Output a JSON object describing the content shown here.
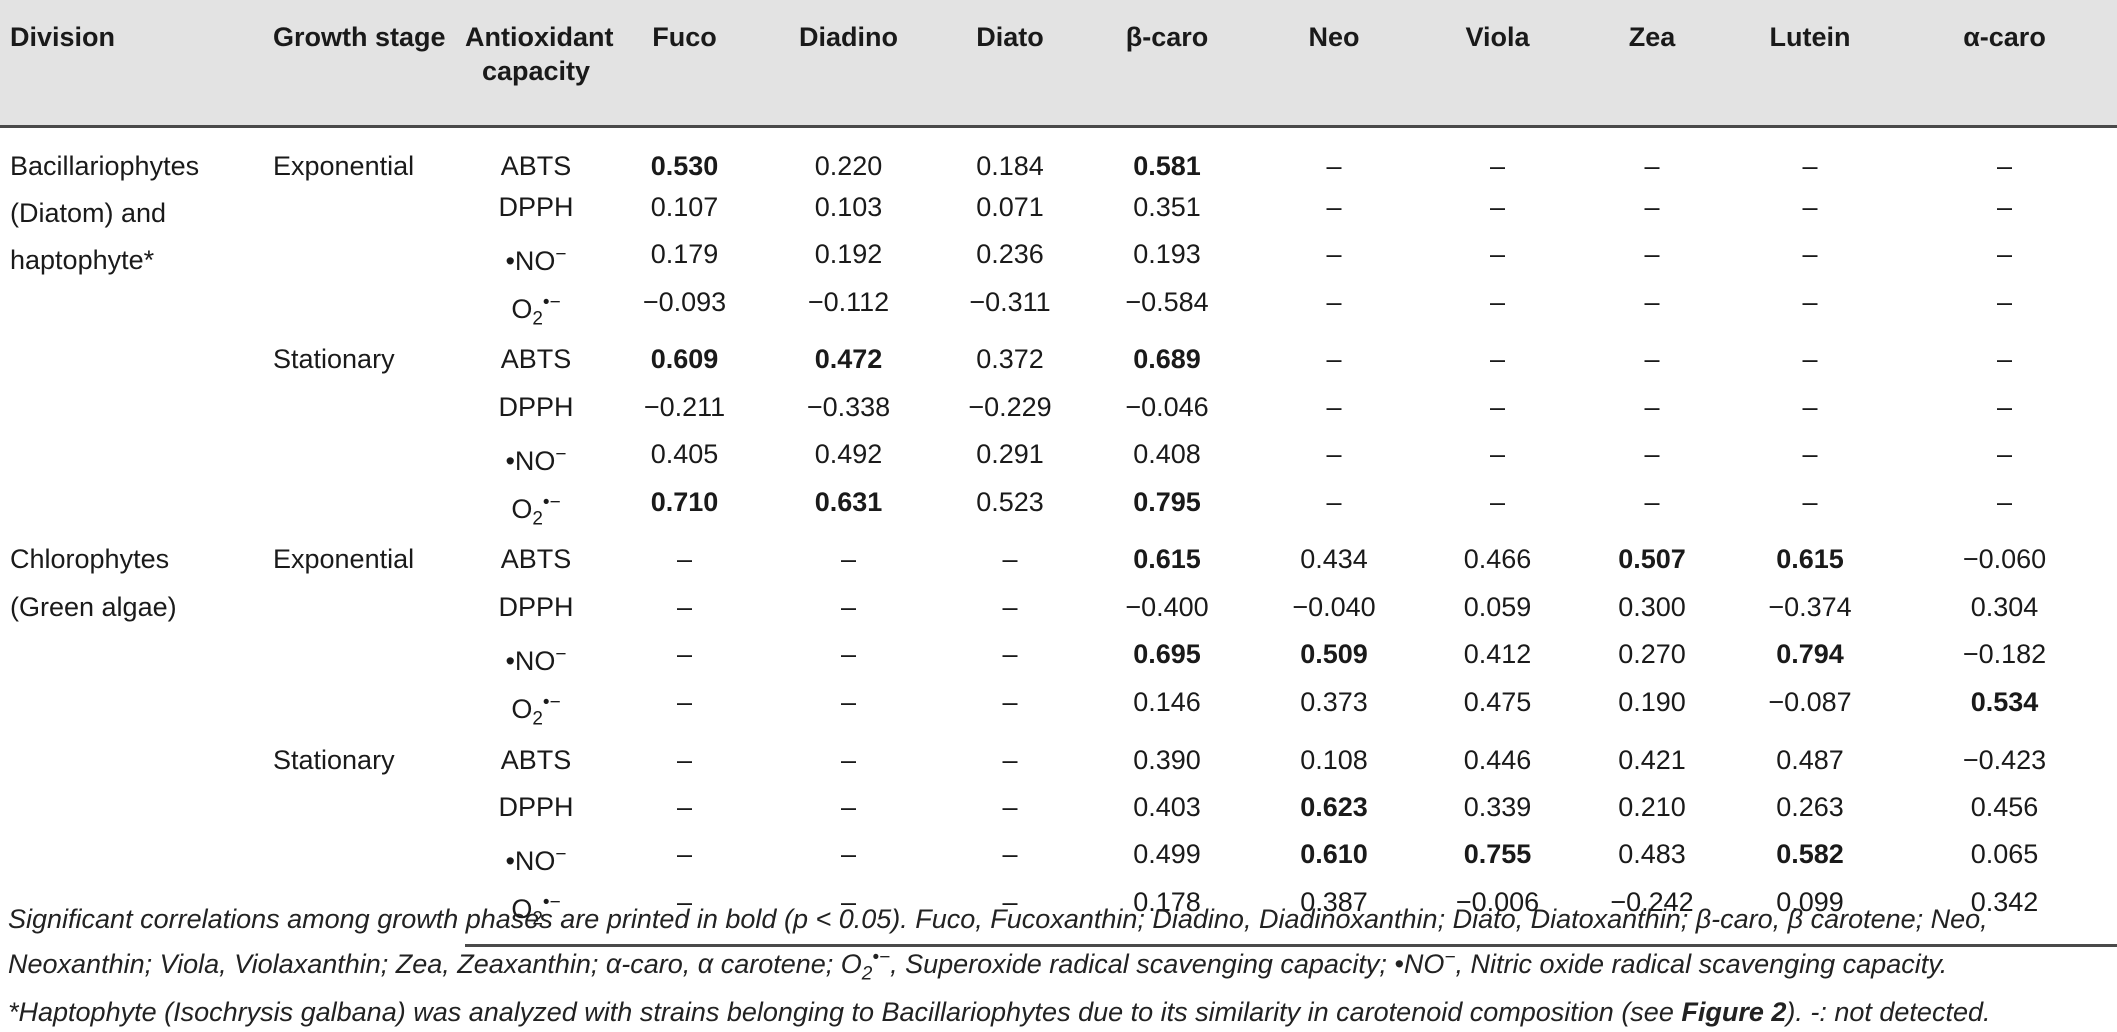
{
  "table": {
    "headers": {
      "division": "Division",
      "growth_stage": "Growth stage",
      "antioxidant_line1": "Antioxidant",
      "antioxidant_line2": "capacity",
      "pigments": [
        "Fuco",
        "Diadino",
        "Diato",
        "β-caro",
        "Neo",
        "Viola",
        "Zea",
        "Lutein",
        "α-caro"
      ]
    },
    "groups": [
      {
        "division_lines": [
          "Bacillariophytes",
          "(Diatom) and",
          "haptophyte*"
        ],
        "stages": [
          {
            "name": "Exponential",
            "rows": [
              {
                "capacity": "ABTS",
                "values": [
                  "0.530",
                  "0.220",
                  "0.184",
                  "0.581",
                  "–",
                  "–",
                  "–",
                  "–",
                  "–"
                ],
                "bold": [
                  true,
                  false,
                  false,
                  true,
                  false,
                  false,
                  false,
                  false,
                  false
                ]
              },
              {
                "capacity": "DPPH",
                "values": [
                  "0.107",
                  "0.103",
                  "0.071",
                  "0.351",
                  "–",
                  "–",
                  "–",
                  "–",
                  "–"
                ],
                "bold": [
                  false,
                  false,
                  false,
                  false,
                  false,
                  false,
                  false,
                  false,
                  false
                ]
              },
              {
                "capacity": "•NO−",
                "values": [
                  "0.179",
                  "0.192",
                  "0.236",
                  "0.193",
                  "–",
                  "–",
                  "–",
                  "–",
                  "–"
                ],
                "bold": [
                  false,
                  false,
                  false,
                  false,
                  false,
                  false,
                  false,
                  false,
                  false
                ]
              },
              {
                "capacity": "O2•−",
                "values": [
                  "−0.093",
                  "−0.112",
                  "−0.311",
                  "−0.584",
                  "–",
                  "–",
                  "–",
                  "–",
                  "–"
                ],
                "bold": [
                  false,
                  false,
                  false,
                  false,
                  false,
                  false,
                  false,
                  false,
                  false
                ]
              }
            ]
          },
          {
            "name": "Stationary",
            "rows": [
              {
                "capacity": "ABTS",
                "values": [
                  "0.609",
                  "0.472",
                  "0.372",
                  "0.689",
                  "–",
                  "–",
                  "–",
                  "–",
                  "–"
                ],
                "bold": [
                  true,
                  true,
                  false,
                  true,
                  false,
                  false,
                  false,
                  false,
                  false
                ]
              },
              {
                "capacity": "DPPH",
                "values": [
                  "−0.211",
                  "−0.338",
                  "−0.229",
                  "−0.046",
                  "–",
                  "–",
                  "–",
                  "–",
                  "–"
                ],
                "bold": [
                  false,
                  false,
                  false,
                  false,
                  false,
                  false,
                  false,
                  false,
                  false
                ]
              },
              {
                "capacity": "•NO−",
                "values": [
                  "0.405",
                  "0.492",
                  "0.291",
                  "0.408",
                  "–",
                  "–",
                  "–",
                  "–",
                  "–"
                ],
                "bold": [
                  false,
                  false,
                  false,
                  false,
                  false,
                  false,
                  false,
                  false,
                  false
                ]
              },
              {
                "capacity": "O2•−",
                "values": [
                  "0.710",
                  "0.631",
                  "0.523",
                  "0.795",
                  "–",
                  "–",
                  "–",
                  "–",
                  "–"
                ],
                "bold": [
                  true,
                  true,
                  false,
                  true,
                  false,
                  false,
                  false,
                  false,
                  false
                ]
              }
            ]
          }
        ]
      },
      {
        "division_lines": [
          "Chlorophytes",
          "(Green algae)"
        ],
        "stages": [
          {
            "name": "Exponential",
            "rows": [
              {
                "capacity": "ABTS",
                "values": [
                  "–",
                  "–",
                  "–",
                  "0.615",
                  "0.434",
                  "0.466",
                  "0.507",
                  "0.615",
                  "−0.060"
                ],
                "bold": [
                  false,
                  false,
                  false,
                  true,
                  false,
                  false,
                  true,
                  true,
                  false
                ]
              },
              {
                "capacity": "DPPH",
                "values": [
                  "–",
                  "–",
                  "–",
                  "−0.400",
                  "−0.040",
                  "0.059",
                  "0.300",
                  "−0.374",
                  "0.304"
                ],
                "bold": [
                  false,
                  false,
                  false,
                  false,
                  false,
                  false,
                  false,
                  false,
                  false
                ]
              },
              {
                "capacity": "•NO−",
                "values": [
                  "–",
                  "–",
                  "–",
                  "0.695",
                  "0.509",
                  "0.412",
                  "0.270",
                  "0.794",
                  "−0.182"
                ],
                "bold": [
                  false,
                  false,
                  false,
                  true,
                  true,
                  false,
                  false,
                  true,
                  false
                ]
              },
              {
                "capacity": "O2•−",
                "values": [
                  "–",
                  "–",
                  "–",
                  "0.146",
                  "0.373",
                  "0.475",
                  "0.190",
                  "−0.087",
                  "0.534"
                ],
                "bold": [
                  false,
                  false,
                  false,
                  false,
                  false,
                  false,
                  false,
                  false,
                  true
                ]
              }
            ]
          },
          {
            "name": "Stationary",
            "rows": [
              {
                "capacity": "ABTS",
                "values": [
                  "–",
                  "–",
                  "–",
                  "0.390",
                  "0.108",
                  "0.446",
                  "0.421",
                  "0.487",
                  "−0.423"
                ],
                "bold": [
                  false,
                  false,
                  false,
                  false,
                  false,
                  false,
                  false,
                  false,
                  false
                ]
              },
              {
                "capacity": "DPPH",
                "values": [
                  "–",
                  "–",
                  "–",
                  "0.403",
                  "0.623",
                  "0.339",
                  "0.210",
                  "0.263",
                  "0.456"
                ],
                "bold": [
                  false,
                  false,
                  false,
                  false,
                  true,
                  false,
                  false,
                  false,
                  false
                ]
              },
              {
                "capacity": "•NO−",
                "values": [
                  "–",
                  "–",
                  "–",
                  "0.499",
                  "0.610",
                  "0.755",
                  "0.483",
                  "0.582",
                  "0.065"
                ],
                "bold": [
                  false,
                  false,
                  false,
                  false,
                  true,
                  true,
                  false,
                  true,
                  false
                ]
              },
              {
                "capacity": "O2•−",
                "values": [
                  "–",
                  "–",
                  "–",
                  "0.178",
                  "0.387",
                  "−0.006",
                  "−0.242",
                  "0.099",
                  "0.342"
                ],
                "bold": [
                  false,
                  false,
                  false,
                  false,
                  false,
                  false,
                  false,
                  false,
                  false
                ]
              }
            ]
          }
        ]
      }
    ]
  },
  "footnote": {
    "line1": "Significant correlations among growth phases are printed in bold (p < 0.05). Fuco, Fucoxanthin; Diadino, Diadinoxanthin; Diato, Diatoxanthin; β-caro, β carotene; Neo,",
    "line2": "Neoxanthin; Viola, Violaxanthin; Zea, Zeaxanthin; α-caro, α carotene; O2•−, Superoxide radical scavenging capacity; •NO−, Nitric oxide radical scavenging capacity.",
    "line3_pre": "*Haptophyte (Isochrysis galbana) was analyzed with strains belonging to Bacillariophytes due to its similarity in carotenoid composition (see ",
    "line3_ref": "Figure 2",
    "line3_post": "). -: not detected."
  }
}
